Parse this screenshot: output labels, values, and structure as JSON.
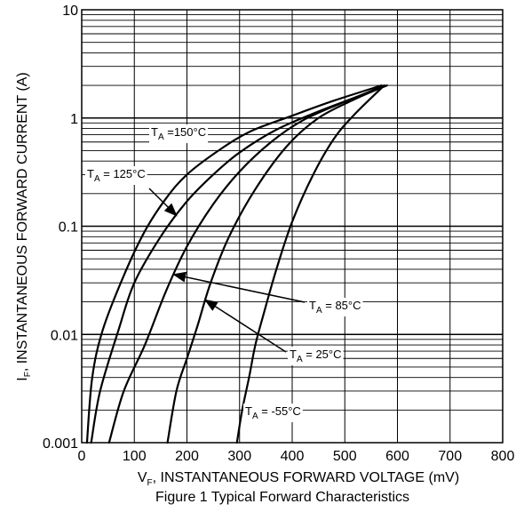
{
  "chart_data": {
    "type": "line",
    "title": "Figure 1 Typical Forward Characteristics",
    "xlabel": {
      "main": "V",
      "sub": "F",
      "rest": ", INSTANTANEOUS FORWARD VOLTAGE (mV)"
    },
    "ylabel": {
      "main": "I",
      "sub": "F",
      "rest": ", INSTANTANEOUS FORWARD CURRENT (A)"
    },
    "x_range": [
      0,
      800
    ],
    "y_range": [
      0.001,
      10
    ],
    "y_scale": "log",
    "x_ticks": [
      "0",
      "100",
      "200",
      "300",
      "400",
      "500",
      "600",
      "700",
      "800"
    ],
    "y_ticks": [
      "0.001",
      "0.01",
      "0.1",
      "1",
      "10"
    ],
    "grid": true,
    "series": [
      {
        "name": "T_A = 150°C",
        "points": [
          [
            10,
            0.001
          ],
          [
            20,
            0.004
          ],
          [
            40,
            0.011
          ],
          [
            80,
            0.035
          ],
          [
            120,
            0.09
          ],
          [
            160,
            0.18
          ],
          [
            200,
            0.3
          ],
          [
            260,
            0.5
          ],
          [
            320,
            0.75
          ],
          [
            400,
            1.05
          ],
          [
            480,
            1.45
          ],
          [
            570,
            2.0
          ]
        ]
      },
      {
        "name": "T_A = 125°C",
        "points": [
          [
            18,
            0.001
          ],
          [
            35,
            0.003
          ],
          [
            70,
            0.011
          ],
          [
            100,
            0.03
          ],
          [
            150,
            0.08
          ],
          [
            200,
            0.17
          ],
          [
            250,
            0.3
          ],
          [
            300,
            0.48
          ],
          [
            370,
            0.78
          ],
          [
            450,
            1.15
          ],
          [
            520,
            1.55
          ],
          [
            575,
            2.0
          ]
        ]
      },
      {
        "name": "T_A = 85°C",
        "points": [
          [
            52,
            0.001
          ],
          [
            80,
            0.003
          ],
          [
            120,
            0.008
          ],
          [
            160,
            0.025
          ],
          [
            200,
            0.065
          ],
          [
            250,
            0.16
          ],
          [
            300,
            0.32
          ],
          [
            360,
            0.6
          ],
          [
            420,
            0.95
          ],
          [
            490,
            1.35
          ],
          [
            580,
            2.0
          ]
        ]
      },
      {
        "name": "T_A = 25°C",
        "points": [
          [
            163,
            0.001
          ],
          [
            180,
            0.003
          ],
          [
            200,
            0.006
          ],
          [
            220,
            0.012
          ],
          [
            245,
            0.03
          ],
          [
            280,
            0.08
          ],
          [
            330,
            0.22
          ],
          [
            390,
            0.55
          ],
          [
            450,
            1.0
          ],
          [
            520,
            1.5
          ],
          [
            580,
            2.0
          ]
        ]
      },
      {
        "name": "T_A = -55°C",
        "points": [
          [
            295,
            0.001
          ],
          [
            305,
            0.002
          ],
          [
            318,
            0.004
          ],
          [
            330,
            0.008
          ],
          [
            345,
            0.015
          ],
          [
            370,
            0.04
          ],
          [
            400,
            0.11
          ],
          [
            440,
            0.3
          ],
          [
            480,
            0.65
          ],
          [
            520,
            1.1
          ],
          [
            575,
            2.0
          ]
        ]
      }
    ],
    "annotations": [
      {
        "series": 0,
        "main": "T",
        "sub": "A",
        "rest": " =150°C",
        "arrow": false
      },
      {
        "series": 1,
        "main": "T",
        "sub": "A",
        "rest": " = 125°C",
        "arrow": true
      },
      {
        "series": 2,
        "main": "T",
        "sub": "A",
        "rest": " = 85°C",
        "arrow": true
      },
      {
        "series": 3,
        "main": "T",
        "sub": "A",
        "rest": " = 25°C",
        "arrow": true
      },
      {
        "series": 4,
        "main": "T",
        "sub": "A",
        "rest": " = -55°C",
        "arrow": false
      }
    ]
  }
}
